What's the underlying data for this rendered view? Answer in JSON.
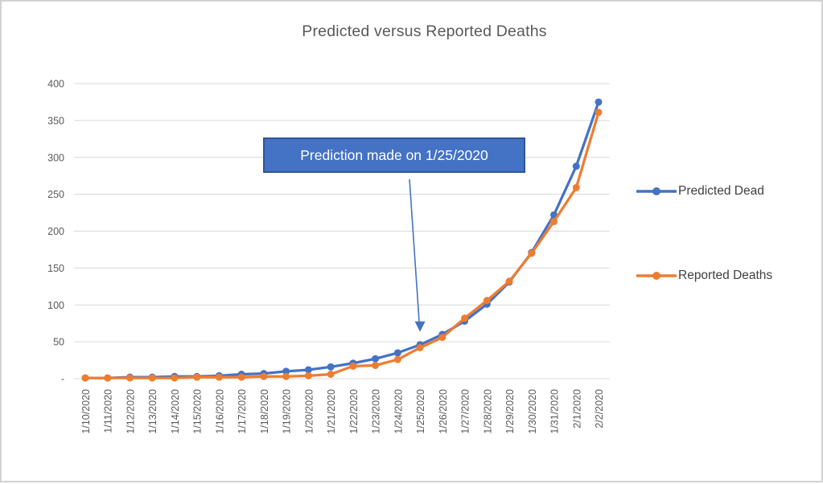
{
  "chart_data": {
    "type": "line",
    "title": "Predicted versus Reported Deaths",
    "categories": [
      "1/10/2020",
      "1/11/2020",
      "1/12/2020",
      "1/13/2020",
      "1/14/2020",
      "1/15/2020",
      "1/16/2020",
      "1/17/2020",
      "1/18/2020",
      "1/19/2020",
      "1/20/2020",
      "1/21/2020",
      "1/22/2020",
      "1/23/2020",
      "1/24/2020",
      "1/25/2020",
      "1/26/2020",
      "1/27/2020",
      "1/28/2020",
      "1/29/2020",
      "1/30/2020",
      "1/31/2020",
      "2/1/2020",
      "2/2/2020"
    ],
    "series": [
      {
        "name": "Predicted Dead",
        "color": "#4472C4",
        "marker": "circle",
        "values": [
          1,
          1,
          2,
          2,
          3,
          3,
          4,
          6,
          7,
          10,
          12,
          16,
          21,
          27,
          35,
          46,
          60,
          78,
          101,
          131,
          171,
          222,
          288,
          375
        ]
      },
      {
        "name": "Reported Deaths",
        "color": "#ED7D31",
        "marker": "circle",
        "values": [
          1,
          1,
          1,
          1,
          1,
          2,
          2,
          2,
          3,
          3,
          4,
          6,
          17,
          18,
          26,
          42,
          56,
          82,
          106,
          132,
          170,
          213,
          259,
          361
        ]
      }
    ],
    "xlabel": "",
    "ylabel": "",
    "ylim": [
      0,
      400
    ],
    "y_ticks": [
      0,
      50,
      100,
      150,
      200,
      250,
      300,
      350,
      400
    ],
    "y_tick_labels": [
      "-",
      "50",
      "100",
      "150",
      "200",
      "250",
      "300",
      "350",
      "400"
    ],
    "x_label_rotation": 90,
    "grid": true,
    "legend_position": "right",
    "annotation": {
      "text": "Prediction made on 1/25/2020",
      "target_category": "1/25/2020",
      "fill": "#4472C4",
      "border": "#2F5597",
      "text_color": "#FFFFFF"
    }
  },
  "colors": {
    "gridline": "#D9D9D9",
    "axis_text": "#595959",
    "title_text": "#595959",
    "legend_text": "#404040",
    "arrow": "#4472C4",
    "frame_border": "#D2D2D2",
    "background": "#FFFFFF"
  }
}
